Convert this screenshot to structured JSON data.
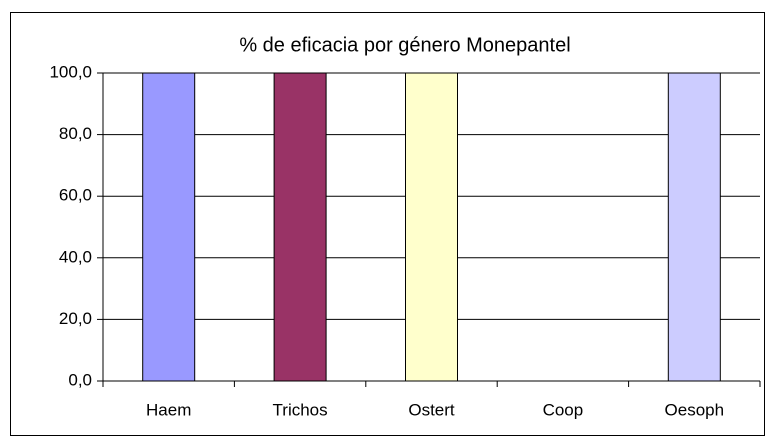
{
  "chart_data": {
    "type": "bar",
    "title": "% de eficacia por género Monepantel",
    "categories": [
      "Haem",
      "Trichos",
      "Ostert",
      "Coop",
      "Oesoph"
    ],
    "values": [
      100,
      100,
      100,
      0,
      100
    ],
    "colors": [
      "#9999ff",
      "#993366",
      "#ffffcc",
      "#ccffff",
      "#ccccff"
    ],
    "ylim": [
      0,
      100
    ],
    "yticks": [
      {
        "value": 0,
        "label": "0,0"
      },
      {
        "value": 20,
        "label": "20,0"
      },
      {
        "value": 40,
        "label": "40,0"
      },
      {
        "value": 60,
        "label": "60,0"
      },
      {
        "value": 80,
        "label": "80,0"
      },
      {
        "value": 100,
        "label": "100,0"
      }
    ],
    "grid": true
  }
}
